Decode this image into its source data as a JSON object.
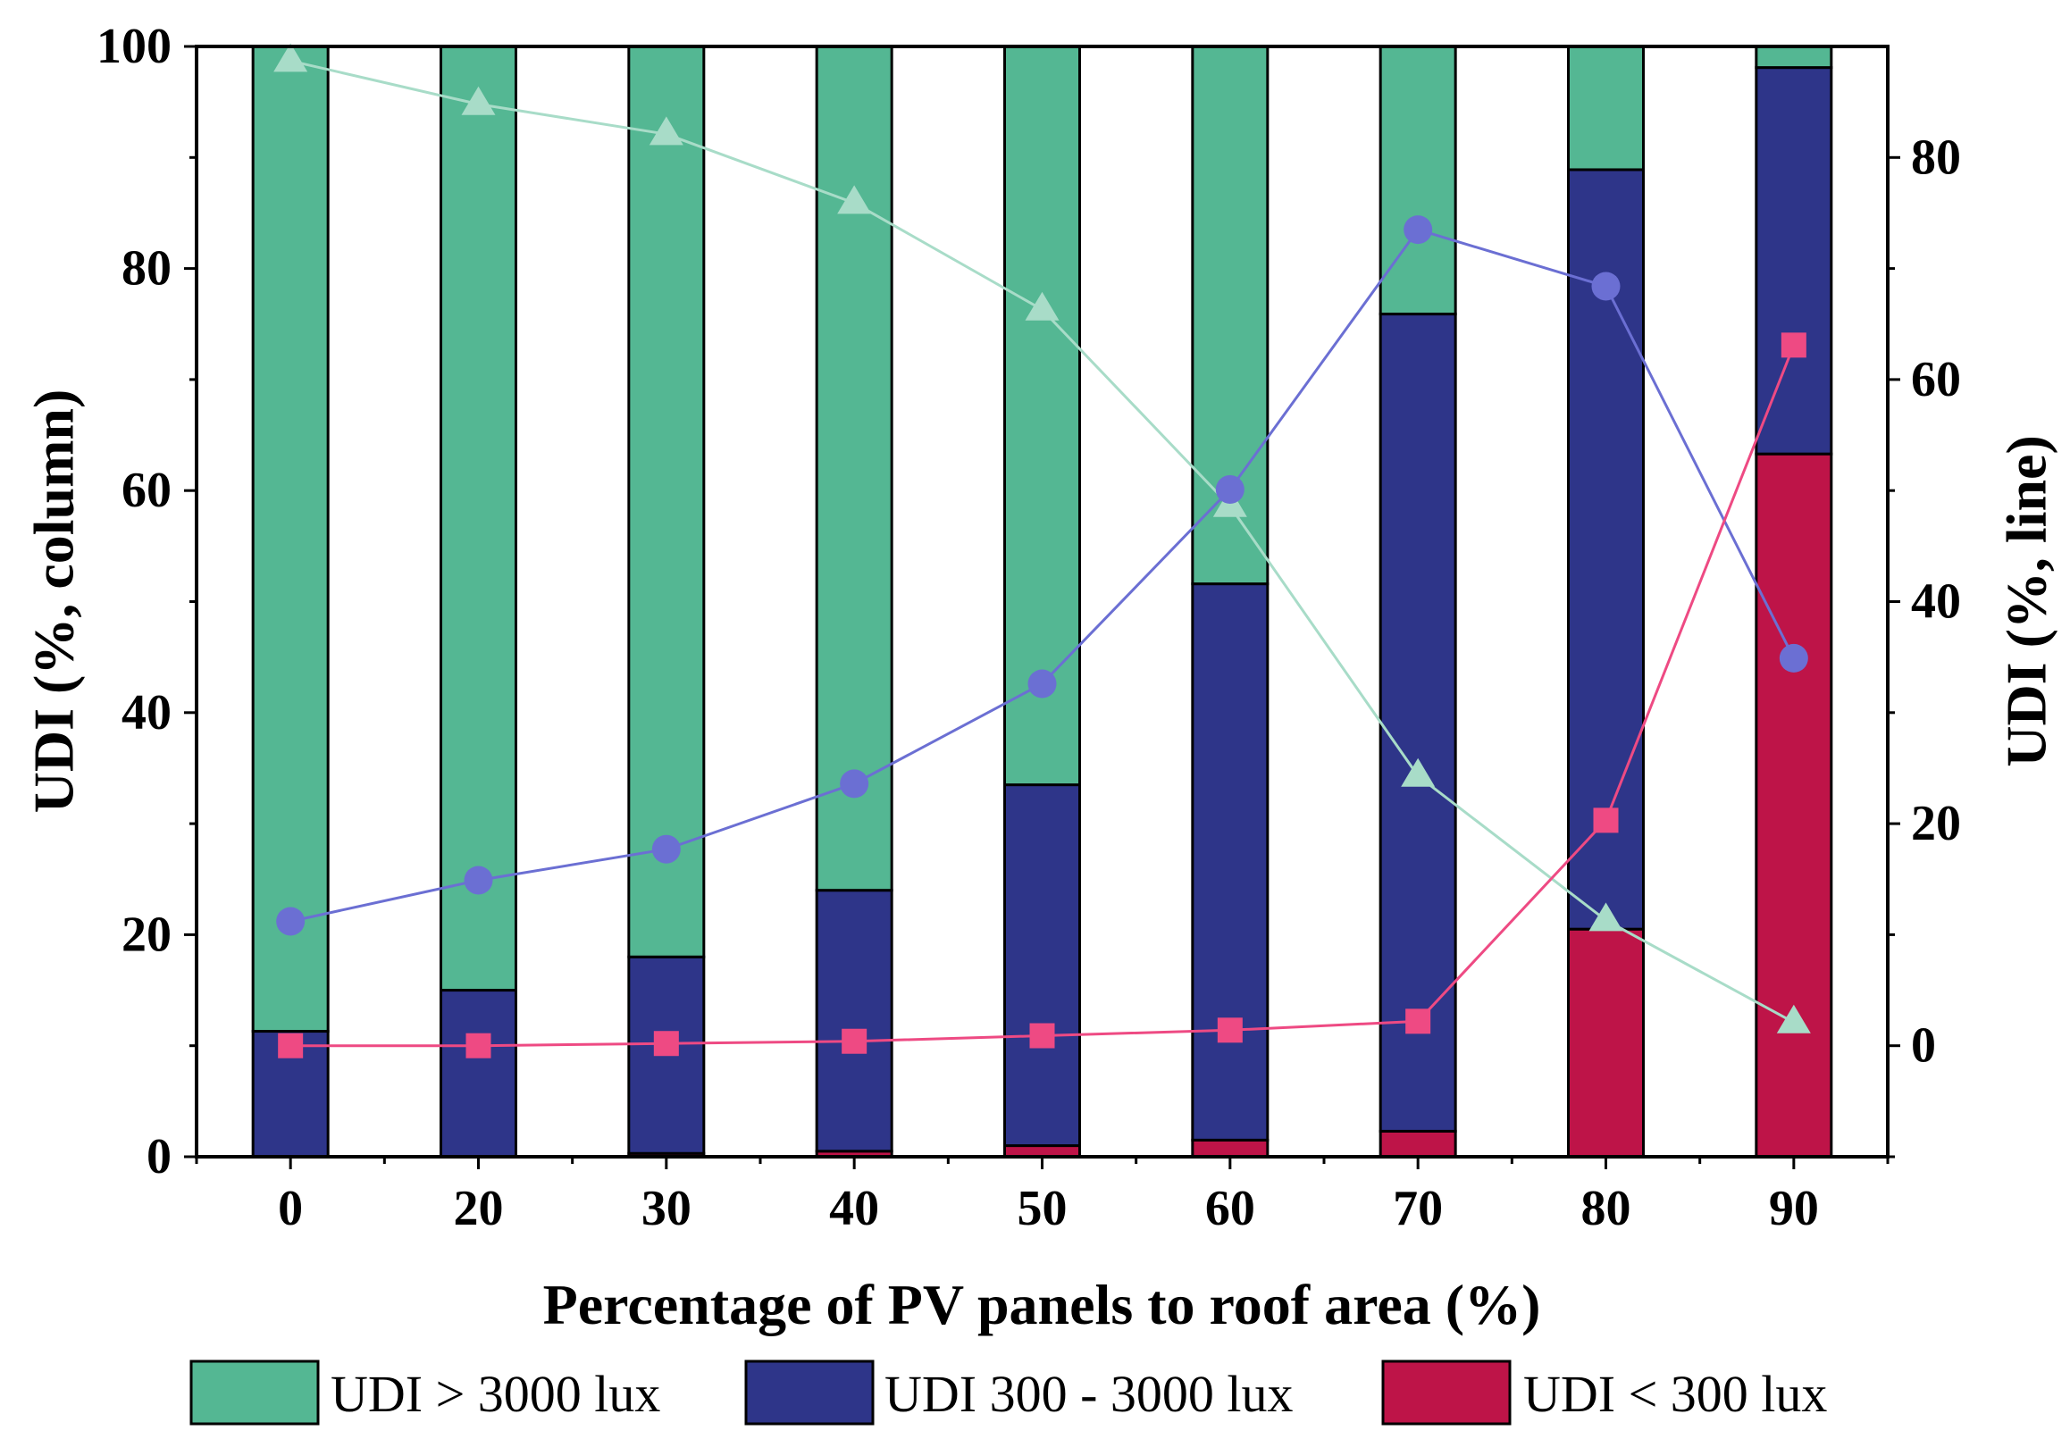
{
  "chart_data": {
    "type": "bar",
    "subtype": "stacked-bar-with-lines",
    "categories": [
      "0",
      "20",
      "30",
      "40",
      "50",
      "60",
      "70",
      "80",
      "90"
    ],
    "xlabel": "Percentage of PV panels to roof area (%)",
    "ylabel": "UDI (%, column)",
    "y2label": "UDI (%, line)",
    "ylim": [
      0,
      100
    ],
    "y2lim": [
      -10,
      90
    ],
    "yticks": [
      0,
      20,
      40,
      60,
      80,
      100
    ],
    "y2ticks": [
      0,
      20,
      40,
      60,
      80
    ],
    "grid": false,
    "legend_position": "bottom",
    "columns": [
      {
        "name": "UDI < 300 lux",
        "color": "#be1448",
        "values": [
          0,
          0,
          0.3,
          0.5,
          1,
          1.5,
          2.3,
          20.5,
          63.3
        ]
      },
      {
        "name": "UDI 300 - 3000 lux",
        "color": "#2e3589",
        "values": [
          11.3,
          15,
          17.7,
          23.5,
          32.5,
          50.1,
          73.6,
          68.4,
          34.8
        ]
      },
      {
        "name": "UDI > 3000 lux",
        "color": "#54b793",
        "values": [
          88.7,
          85,
          82,
          76,
          66.5,
          48.4,
          24.1,
          11.1,
          1.9
        ]
      }
    ],
    "lines": [
      {
        "name": "UDI > 3000 lux",
        "color": "#a8dcc8",
        "marker": "triangle",
        "values": [
          88.7,
          84.8,
          82.1,
          75.9,
          66.3,
          48.6,
          24.3,
          11.3,
          2.1
        ]
      },
      {
        "name": "UDI 300 - 3000 lux",
        "color": "#6b6fd3",
        "marker": "circle",
        "values": [
          11.2,
          14.9,
          17.7,
          23.6,
          32.6,
          50.1,
          73.5,
          68.4,
          34.9
        ]
      },
      {
        "name": "UDI < 300 lux",
        "color": "#ee4a83",
        "marker": "square",
        "values": [
          0,
          0,
          0.2,
          0.4,
          0.9,
          1.4,
          2.2,
          20.3,
          63.1
        ]
      }
    ],
    "legend": [
      {
        "label": "UDI > 3000 lux",
        "color": "#54b793"
      },
      {
        "label": "UDI 300 - 3000 lux",
        "color": "#2e3589"
      },
      {
        "label": "UDI < 300 lux",
        "color": "#be1448"
      }
    ]
  }
}
